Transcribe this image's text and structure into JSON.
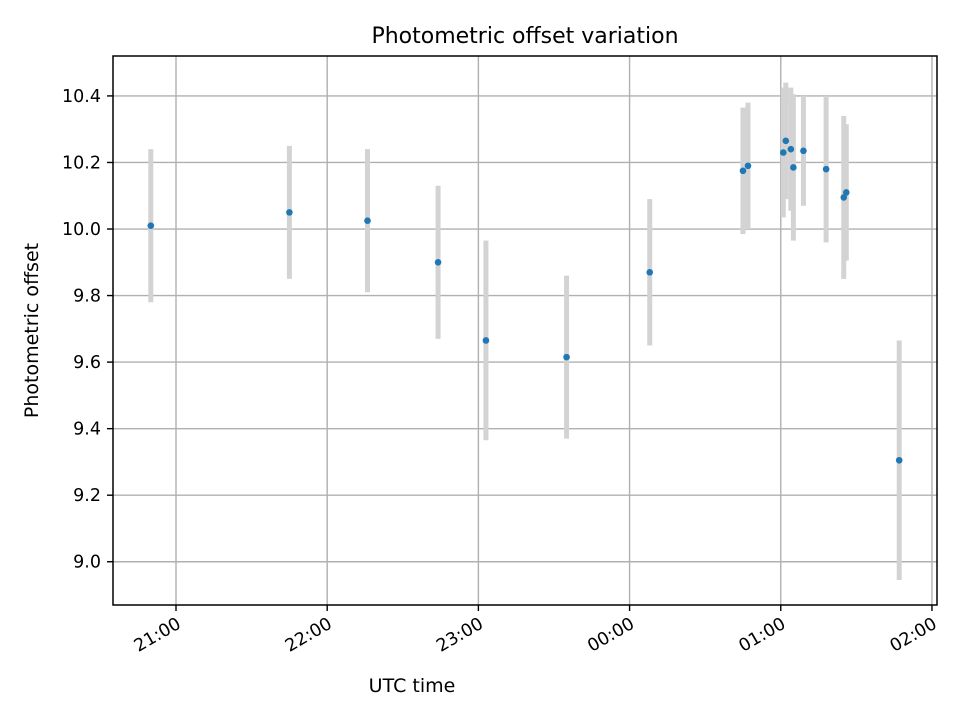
{
  "chart_data": {
    "type": "scatter",
    "title": "Photometric offset variation",
    "xlabel": "UTC time",
    "ylabel": "Photometric offset",
    "x_is_time": true,
    "xlim": [
      "20:35",
      "02:02"
    ],
    "ylim": [
      8.87,
      10.52
    ],
    "xticks": [
      "21:00",
      "22:00",
      "23:00",
      "00:00",
      "01:00",
      "02:00"
    ],
    "yticks": [
      9.0,
      9.2,
      9.4,
      9.6,
      9.8,
      10.0,
      10.2,
      10.4
    ],
    "ytick_labels": [
      "9.0",
      "9.2",
      "9.4",
      "9.6",
      "9.8",
      "10.0",
      "10.2",
      "10.4"
    ],
    "grid": true,
    "colors": {
      "point": "#1f77b4",
      "errorbar": "#d3d3d3",
      "grid": "#b0b0b0"
    },
    "series": [
      {
        "points": [
          {
            "x": "20:50",
            "y": 10.01,
            "yerr": 0.23
          },
          {
            "x": "21:45",
            "y": 10.05,
            "yerr": 0.2
          },
          {
            "x": "22:16",
            "y": 10.025,
            "yerr": 0.215
          },
          {
            "x": "22:44",
            "y": 9.9,
            "yerr": 0.23
          },
          {
            "x": "23:03",
            "y": 9.665,
            "yerr": 0.3
          },
          {
            "x": "23:35",
            "y": 9.615,
            "yerr": 0.245
          },
          {
            "x": "00:08",
            "y": 9.87,
            "yerr": 0.22
          },
          {
            "x": "00:45",
            "y": 10.175,
            "yerr": 0.19
          },
          {
            "x": "00:47",
            "y": 10.19,
            "yerr": 0.19
          },
          {
            "x": "01:01",
            "y": 10.23,
            "yerr": 0.195
          },
          {
            "x": "01:02",
            "y": 10.265,
            "yerr": 0.175
          },
          {
            "x": "01:04",
            "y": 10.24,
            "yerr": 0.185
          },
          {
            "x": "01:05",
            "y": 10.185,
            "yerr": 0.22
          },
          {
            "x": "01:09",
            "y": 10.235,
            "yerr": 0.165
          },
          {
            "x": "01:18",
            "y": 10.18,
            "yerr": 0.22
          },
          {
            "x": "01:25",
            "y": 10.095,
            "yerr": 0.245
          },
          {
            "x": "01:26",
            "y": 10.11,
            "yerr": 0.205
          },
          {
            "x": "01:47",
            "y": 9.305,
            "yerr": 0.36
          }
        ]
      }
    ]
  }
}
